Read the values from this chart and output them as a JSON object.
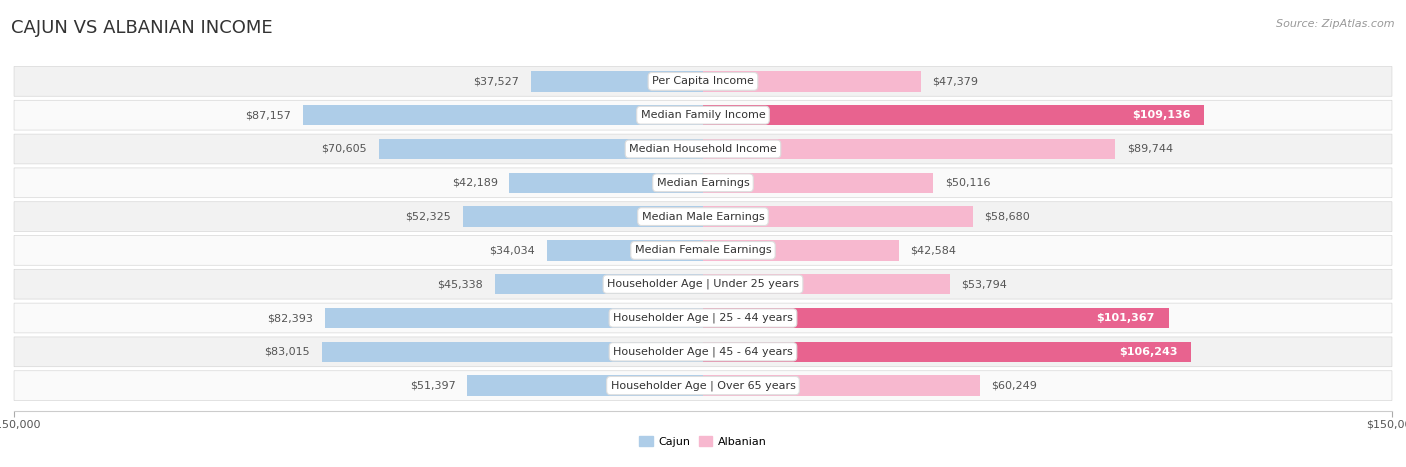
{
  "title": "CAJUN VS ALBANIAN INCOME",
  "source": "Source: ZipAtlas.com",
  "categories": [
    "Per Capita Income",
    "Median Family Income",
    "Median Household Income",
    "Median Earnings",
    "Median Male Earnings",
    "Median Female Earnings",
    "Householder Age | Under 25 years",
    "Householder Age | 25 - 44 years",
    "Householder Age | 45 - 64 years",
    "Householder Age | Over 65 years"
  ],
  "cajun_values": [
    37527,
    87157,
    70605,
    42189,
    52325,
    34034,
    45338,
    82393,
    83015,
    51397
  ],
  "albanian_values": [
    47379,
    109136,
    89744,
    50116,
    58680,
    42584,
    53794,
    101367,
    106243,
    60249
  ],
  "cajun_color_light": "#aecde8",
  "cajun_color_dark": "#6aa3cc",
  "albanian_color_light": "#f7b8cf",
  "albanian_color_dark": "#e8638f",
  "cajun_label": "Cajun",
  "albanian_label": "Albanian",
  "x_max": 150000,
  "x_min": -150000,
  "row_bg_even": "#f2f2f2",
  "row_bg_odd": "#fafafa",
  "title_fontsize": 13,
  "source_fontsize": 8,
  "label_fontsize": 8,
  "value_fontsize": 8,
  "axis_label_fontsize": 8,
  "white_text_threshold": 95000
}
